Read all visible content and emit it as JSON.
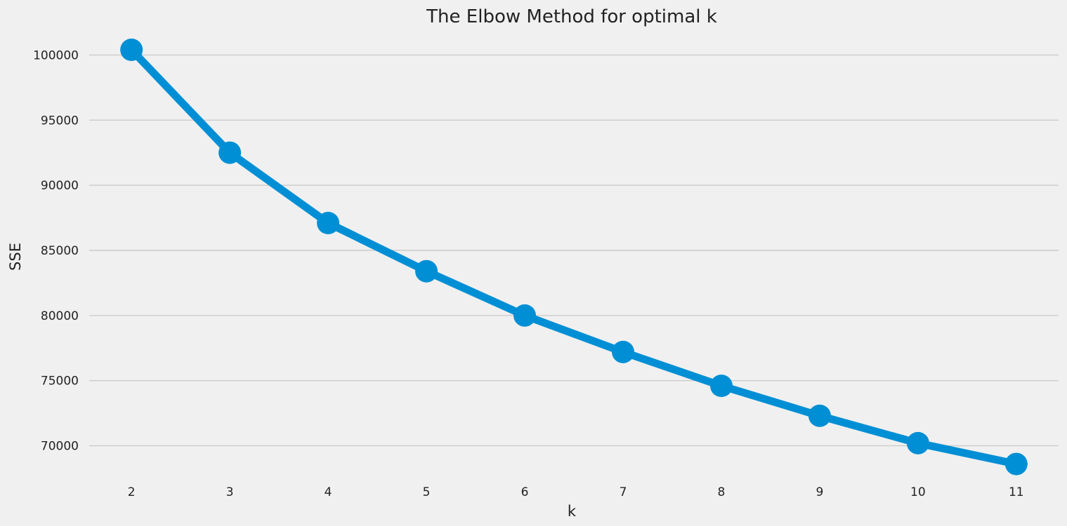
{
  "chart_data": {
    "type": "line",
    "title": "The Elbow Method for optimal k",
    "xlabel": "k",
    "ylabel": "SSE",
    "x": [
      2,
      3,
      4,
      5,
      6,
      7,
      8,
      9,
      10,
      11
    ],
    "series": [
      {
        "values": [
          100400,
          92500,
          87100,
          83400,
          80000,
          77200,
          74600,
          72300,
          70200,
          68600
        ],
        "color": "#008fd5"
      }
    ],
    "yticks": [
      70000,
      75000,
      80000,
      85000,
      90000,
      95000,
      100000
    ],
    "ylim": [
      67500,
      101800
    ],
    "grid": "horizontal",
    "marker": "circle",
    "background": "#f0f0f0",
    "gridColor": "#cbcbcb"
  }
}
